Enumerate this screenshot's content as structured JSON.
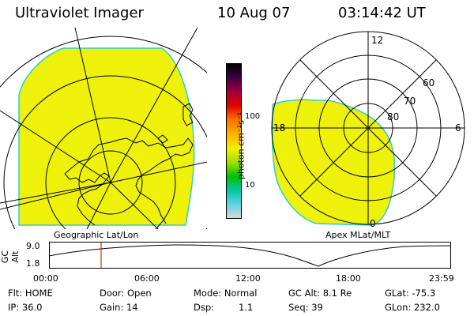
{
  "header": {
    "title": "Ultraviolet Imager",
    "date": "10 Aug 07",
    "time": "03:14:42 UT"
  },
  "colorbar": {
    "unit_label": "photon cm⁻²s⁻¹",
    "tick_100": "100",
    "tick_10": "10",
    "colors": [
      "#d8d8d8",
      "#5fd0e8",
      "#00c8a0",
      "#00c000",
      "#a0e000",
      "#f0f000",
      "#ffb000",
      "#ff7000",
      "#e00000",
      "#a00040",
      "#400040",
      "#000000"
    ]
  },
  "left_panel": {
    "caption": "Geographic Lat/Lon",
    "fill_color": "#eef20a"
  },
  "right_panel": {
    "caption": "Apex MLat/MLT",
    "label_12": "12",
    "label_18": "18",
    "label_6": "6",
    "label_0": "0",
    "label_60": "60",
    "label_70": "70",
    "label_80": "80",
    "fill_color": "#eef20a"
  },
  "altitude_plot": {
    "ylabel": "GC Alt",
    "ytick_top": "9.0",
    "ytick_bottom": "1.8",
    "xticks": [
      "00:00",
      "06:00",
      "12:00",
      "18:00",
      "23:59"
    ],
    "marker_color": "#d00000"
  },
  "info": {
    "flt": "Flt: HOME",
    "ip": "IP: 36.0",
    "door": "Door: Open",
    "gain": "Gain: 14",
    "mode": "Mode: Normal",
    "dsp_label": "Dsp:",
    "dsp_value": "1.1",
    "gcalt": "GC Alt: 8.1 Re",
    "seq": "Seq: 39",
    "glat": "GLat: -75.3",
    "glon": "GLon: 232.0"
  }
}
